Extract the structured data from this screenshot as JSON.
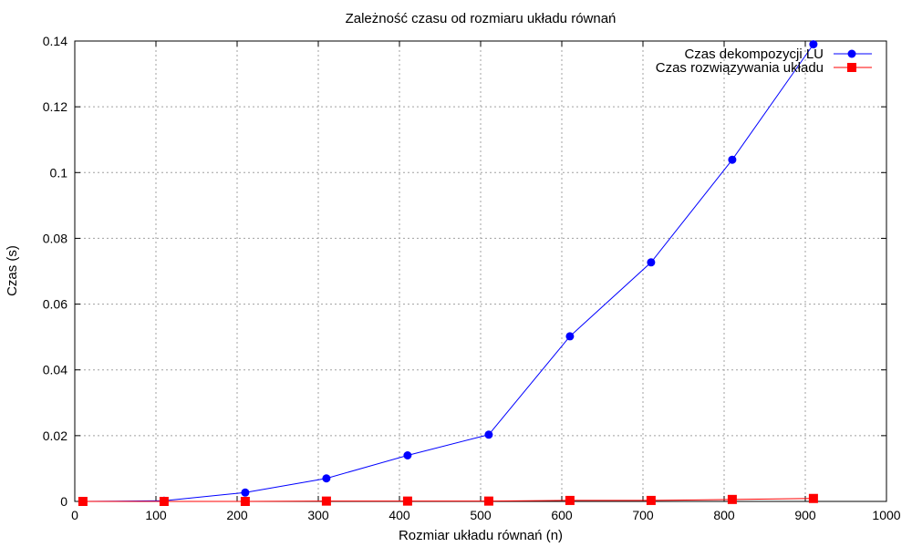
{
  "chart_data": {
    "type": "line",
    "title": "Zależność czasu od rozmiaru układu równań",
    "xlabel": "Rozmiar układu równań (n)",
    "ylabel": "Czas (s)",
    "xlim": [
      0,
      1000
    ],
    "ylim": [
      0,
      0.14
    ],
    "xticks": [
      0,
      100,
      200,
      300,
      400,
      500,
      600,
      700,
      800,
      900,
      1000
    ],
    "xtick_labels": [
      "0",
      "100",
      "200",
      "300",
      "400",
      "500",
      "600",
      "700",
      "800",
      "900",
      "1000"
    ],
    "yticks": [
      0,
      0.02,
      0.04,
      0.06,
      0.08,
      0.1,
      0.12,
      0.14
    ],
    "ytick_labels": [
      "0",
      "0.02",
      "0.04",
      "0.06",
      "0.08",
      "0.1",
      "0.12",
      "0.14"
    ],
    "grid": true,
    "legend_position": "top-right",
    "series": [
      {
        "name": "Czas dekompozycji LU",
        "color": "#0000ff",
        "marker": "circle",
        "x": [
          10,
          110,
          210,
          310,
          410,
          510,
          610,
          710,
          810,
          910
        ],
        "y": [
          0.0,
          0.0002,
          0.0027,
          0.007,
          0.014,
          0.0203,
          0.0502,
          0.0727,
          0.1039,
          0.139
        ]
      },
      {
        "name": "Czas rozwiązywania układu",
        "color": "#ff0000",
        "marker": "square",
        "x": [
          10,
          110,
          210,
          310,
          410,
          510,
          610,
          710,
          810,
          910
        ],
        "y": [
          0.0,
          0.0,
          0.0,
          0.0001,
          0.0001,
          0.0001,
          0.0003,
          0.0003,
          0.0006,
          0.0009
        ]
      }
    ]
  }
}
